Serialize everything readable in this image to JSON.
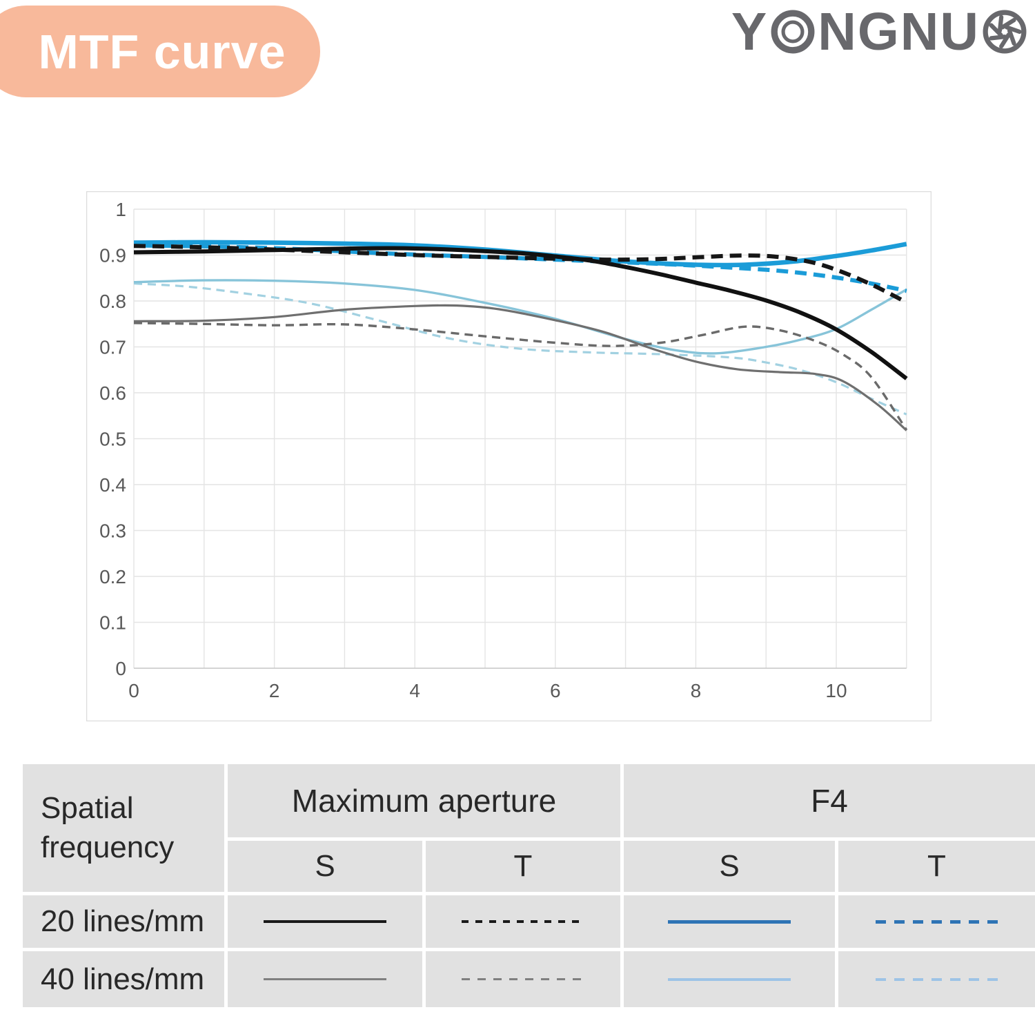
{
  "header": {
    "title": "MTF curve",
    "brand_part1": "Y",
    "brand_part2": "NGNU"
  },
  "colors": {
    "pill_bg": "#f8b99b",
    "brand_gray": "#68686c",
    "grid": "#e4e4e4",
    "axis": "#c6c6c6",
    "frame": "#dcdcdc",
    "tick_text": "#595959",
    "chart_blue": "#1b9cd8",
    "chart_light_blue": "#87c4d9",
    "chart_light_blue_dash": "#a2d1e1",
    "chart_black": "#111111",
    "chart_gray": "#6f6f6f",
    "table_bg": "#e1e1e1",
    "table_blue": "#2e74b5",
    "table_light_blue": "#9dc3e6",
    "table_black": "#1a1a1a",
    "table_gray": "#7f7f7f"
  },
  "chart_data": {
    "type": "line",
    "title": "",
    "xlabel": "",
    "ylabel": "",
    "xlim": [
      0,
      11
    ],
    "ylim": [
      0,
      1
    ],
    "grid": true,
    "x_ticks": [
      {
        "label": "0",
        "x": 0
      },
      {
        "label": "2",
        "x": 2
      },
      {
        "label": "4",
        "x": 4
      },
      {
        "label": "6",
        "x": 6
      },
      {
        "label": "8",
        "x": 8
      },
      {
        "label": "10",
        "x": 10
      }
    ],
    "y_ticks": [
      {
        "label": "1",
        "v": 1.0
      },
      {
        "label": "0.9",
        "v": 0.9
      },
      {
        "label": "0.8",
        "v": 0.8
      },
      {
        "label": "0.7",
        "v": 0.7
      },
      {
        "label": "0.6",
        "v": 0.6
      },
      {
        "label": "0.5",
        "v": 0.5
      },
      {
        "label": "0.4",
        "v": 0.4
      },
      {
        "label": "0.3",
        "v": 0.3
      },
      {
        "label": "0.2",
        "v": 0.2
      },
      {
        "label": "0.1",
        "v": 0.1
      },
      {
        "label": "0",
        "v": 0.0
      }
    ],
    "series": [
      {
        "name": "F4 T 40 lines/mm",
        "color": "#a2d1e1",
        "width": 3.2,
        "dash": "12 8",
        "points": [
          [
            0,
            0.838
          ],
          [
            0.7,
            0.832
          ],
          [
            1.5,
            0.818
          ],
          [
            2.5,
            0.795
          ],
          [
            3.5,
            0.757
          ],
          [
            4.5,
            0.718
          ],
          [
            5.5,
            0.696
          ],
          [
            6.5,
            0.688
          ],
          [
            7.5,
            0.684
          ],
          [
            8.5,
            0.677
          ],
          [
            9,
            0.666
          ],
          [
            9.5,
            0.649
          ],
          [
            10,
            0.623
          ],
          [
            10.5,
            0.587
          ],
          [
            11,
            0.553
          ]
        ]
      },
      {
        "name": "F4 S 40 lines/mm",
        "color": "#87c4d9",
        "width": 3.4,
        "dash": null,
        "points": [
          [
            0,
            0.841
          ],
          [
            1,
            0.845
          ],
          [
            2,
            0.844
          ],
          [
            3,
            0.838
          ],
          [
            4,
            0.824
          ],
          [
            5,
            0.796
          ],
          [
            6,
            0.761
          ],
          [
            7,
            0.717
          ],
          [
            7.7,
            0.693
          ],
          [
            8.3,
            0.686
          ],
          [
            9,
            0.7
          ],
          [
            9.5,
            0.716
          ],
          [
            10,
            0.739
          ],
          [
            10.5,
            0.781
          ],
          [
            11,
            0.825
          ]
        ]
      },
      {
        "name": "Maximum aperture T 40 lines/mm",
        "color": "#6a6a6a",
        "width": 3.4,
        "dash": "12 8",
        "points": [
          [
            0,
            0.752
          ],
          [
            1,
            0.75
          ],
          [
            2,
            0.747
          ],
          [
            3,
            0.749
          ],
          [
            4,
            0.738
          ],
          [
            5,
            0.723
          ],
          [
            6,
            0.709
          ],
          [
            6.8,
            0.702
          ],
          [
            7.5,
            0.709
          ],
          [
            8.1,
            0.726
          ],
          [
            8.7,
            0.744
          ],
          [
            9.2,
            0.736
          ],
          [
            9.7,
            0.713
          ],
          [
            10.1,
            0.683
          ],
          [
            10.5,
            0.634
          ],
          [
            11,
            0.519
          ]
        ]
      },
      {
        "name": "Maximum aperture S 40 lines/mm",
        "color": "#6f6f6f",
        "width": 3.2,
        "dash": null,
        "points": [
          [
            0,
            0.756
          ],
          [
            1,
            0.757
          ],
          [
            2,
            0.765
          ],
          [
            3,
            0.781
          ],
          [
            4,
            0.789
          ],
          [
            4.6,
            0.79
          ],
          [
            5.2,
            0.782
          ],
          [
            6,
            0.758
          ],
          [
            6.7,
            0.732
          ],
          [
            7.4,
            0.695
          ],
          [
            8,
            0.668
          ],
          [
            8.6,
            0.651
          ],
          [
            9.2,
            0.645
          ],
          [
            9.7,
            0.641
          ],
          [
            10.1,
            0.625
          ],
          [
            10.6,
            0.573
          ],
          [
            11,
            0.518
          ]
        ]
      },
      {
        "name": "F4 T 20 lines/mm",
        "color": "#1b9cd8",
        "width": 6,
        "dash": "17 10",
        "dashoffset": 13,
        "points": [
          [
            0,
            0.921
          ],
          [
            1,
            0.919
          ],
          [
            2,
            0.915
          ],
          [
            3,
            0.908
          ],
          [
            4,
            0.901
          ],
          [
            5,
            0.896
          ],
          [
            6,
            0.89
          ],
          [
            7,
            0.884
          ],
          [
            8,
            0.877
          ],
          [
            9,
            0.868
          ],
          [
            9.5,
            0.861
          ],
          [
            10,
            0.851
          ],
          [
            10.5,
            0.838
          ],
          [
            11,
            0.822
          ]
        ]
      },
      {
        "name": "F4 S 20 lines/mm",
        "color": "#1b9cd8",
        "width": 6.5,
        "dash": null,
        "points": [
          [
            0,
            0.927
          ],
          [
            1,
            0.928
          ],
          [
            2,
            0.927
          ],
          [
            3,
            0.925
          ],
          [
            4,
            0.921
          ],
          [
            5,
            0.912
          ],
          [
            6,
            0.899
          ],
          [
            7,
            0.886
          ],
          [
            8,
            0.879
          ],
          [
            8.7,
            0.879
          ],
          [
            9.4,
            0.886
          ],
          [
            10,
            0.898
          ],
          [
            10.5,
            0.91
          ],
          [
            11,
            0.924
          ]
        ]
      },
      {
        "name": "Maximum aperture T 20 lines/mm",
        "color": "#161616",
        "width": 6,
        "dash": "17 10",
        "points": [
          [
            0,
            0.92
          ],
          [
            1,
            0.917
          ],
          [
            2,
            0.912
          ],
          [
            3,
            0.906
          ],
          [
            4,
            0.9
          ],
          [
            5,
            0.896
          ],
          [
            6,
            0.892
          ],
          [
            6.7,
            0.89
          ],
          [
            7.4,
            0.891
          ],
          [
            8,
            0.895
          ],
          [
            8.6,
            0.899
          ],
          [
            9.1,
            0.897
          ],
          [
            9.6,
            0.886
          ],
          [
            10,
            0.868
          ],
          [
            10.5,
            0.836
          ],
          [
            11,
            0.797
          ]
        ]
      },
      {
        "name": "Maximum aperture S 20 lines/mm",
        "color": "#111111",
        "width": 6,
        "dash": null,
        "points": [
          [
            0,
            0.906
          ],
          [
            1,
            0.908
          ],
          [
            2,
            0.911
          ],
          [
            3,
            0.914
          ],
          [
            3.7,
            0.915
          ],
          [
            4.5,
            0.912
          ],
          [
            5.5,
            0.904
          ],
          [
            6,
            0.897
          ],
          [
            6.5,
            0.888
          ],
          [
            7,
            0.874
          ],
          [
            7.5,
            0.858
          ],
          [
            8,
            0.84
          ],
          [
            8.5,
            0.822
          ],
          [
            9,
            0.801
          ],
          [
            9.5,
            0.774
          ],
          [
            10,
            0.738
          ],
          [
            10.5,
            0.689
          ],
          [
            11,
            0.631
          ]
        ]
      }
    ]
  },
  "table": {
    "corner": "Spatial frequency",
    "groups": [
      "Maximum aperture",
      "F4"
    ],
    "subheaders": [
      "S",
      "T",
      "S",
      "T"
    ],
    "rows": [
      {
        "label": "20 lines/mm",
        "samples": [
          {
            "color": "#1a1a1a",
            "dash": null,
            "h": 4
          },
          {
            "color": "#1a1a1a",
            "dash": [
              10,
              10
            ],
            "h": 4
          },
          {
            "color": "#2e74b5",
            "dash": null,
            "h": 5
          },
          {
            "color": "#2e74b5",
            "dash": [
              15,
              12
            ],
            "h": 5
          }
        ]
      },
      {
        "label": "40 lines/mm",
        "samples": [
          {
            "color": "#7f7f7f",
            "dash": null,
            "h": 3
          },
          {
            "color": "#7f7f7f",
            "dash": [
              12,
              11
            ],
            "h": 3
          },
          {
            "color": "#9dc3e6",
            "dash": null,
            "h": 4
          },
          {
            "color": "#9dc3e6",
            "dash": [
              15,
              12
            ],
            "h": 4
          }
        ]
      }
    ]
  }
}
